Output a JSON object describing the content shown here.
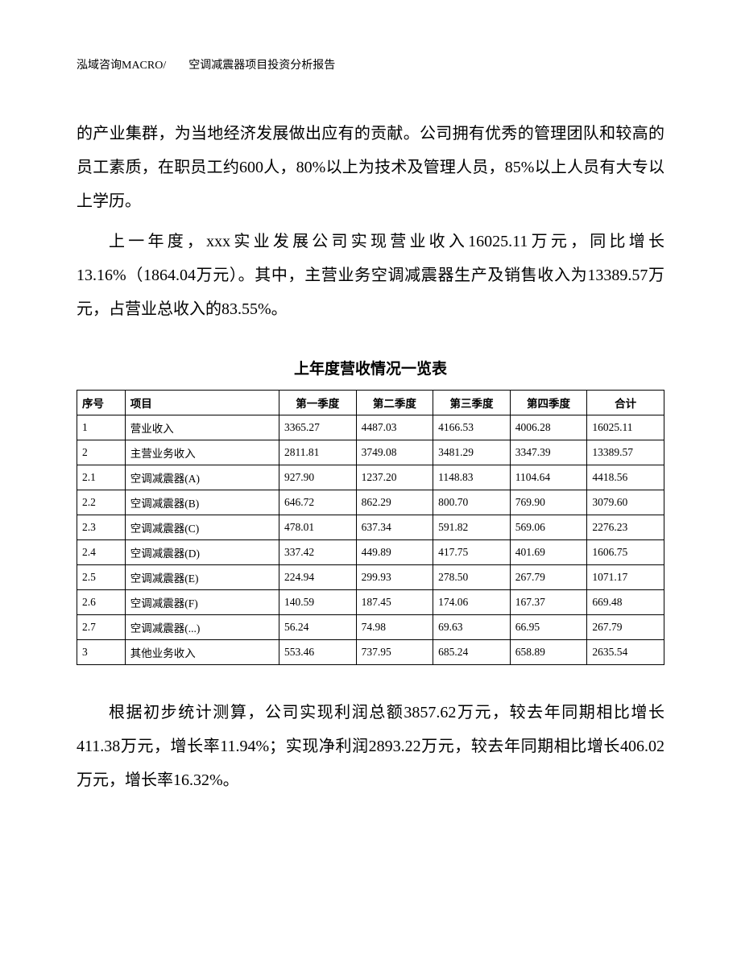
{
  "header": {
    "text": "泓域咨询MACRO/　　空调减震器项目投资分析报告"
  },
  "paragraph1": "的产业集群，为当地经济发展做出应有的贡献。公司拥有优秀的管理团队和较高的员工素质，在职员工约600人，80%以上为技术及管理人员，85%以上人员有大专以上学历。",
  "paragraph2": "上一年度，xxx实业发展公司实现营业收入16025.11万元，同比增长13.16%（1864.04万元）。其中，主营业务空调减震器生产及销售收入为13389.57万元，占营业总收入的83.55%。",
  "table": {
    "title": "上年度营收情况一览表",
    "headers": {
      "seq": "序号",
      "item": "项目",
      "q1": "第一季度",
      "q2": "第二季度",
      "q3": "第三季度",
      "q4": "第四季度",
      "total": "合计"
    },
    "rows": [
      {
        "seq": "1",
        "item": "营业收入",
        "q1": "3365.27",
        "q2": "4487.03",
        "q3": "4166.53",
        "q4": "4006.28",
        "total": "16025.11"
      },
      {
        "seq": "2",
        "item": "主营业务收入",
        "q1": "2811.81",
        "q2": "3749.08",
        "q3": "3481.29",
        "q4": "3347.39",
        "total": "13389.57"
      },
      {
        "seq": "2.1",
        "item": "空调减震器(A)",
        "q1": "927.90",
        "q2": "1237.20",
        "q3": "1148.83",
        "q4": "1104.64",
        "total": "4418.56"
      },
      {
        "seq": "2.2",
        "item": "空调减震器(B)",
        "q1": "646.72",
        "q2": "862.29",
        "q3": "800.70",
        "q4": "769.90",
        "total": "3079.60"
      },
      {
        "seq": "2.3",
        "item": "空调减震器(C)",
        "q1": "478.01",
        "q2": "637.34",
        "q3": "591.82",
        "q4": "569.06",
        "total": "2276.23"
      },
      {
        "seq": "2.4",
        "item": "空调减震器(D)",
        "q1": "337.42",
        "q2": "449.89",
        "q3": "417.75",
        "q4": "401.69",
        "total": "1606.75"
      },
      {
        "seq": "2.5",
        "item": "空调减震器(E)",
        "q1": "224.94",
        "q2": "299.93",
        "q3": "278.50",
        "q4": "267.79",
        "total": "1071.17"
      },
      {
        "seq": "2.6",
        "item": "空调减震器(F)",
        "q1": "140.59",
        "q2": "187.45",
        "q3": "174.06",
        "q4": "167.37",
        "total": "669.48"
      },
      {
        "seq": "2.7",
        "item": "空调减震器(...)",
        "q1": "56.24",
        "q2": "74.98",
        "q3": "69.63",
        "q4": "66.95",
        "total": "267.79"
      },
      {
        "seq": "3",
        "item": "其他业务收入",
        "q1": "553.46",
        "q2": "737.95",
        "q3": "685.24",
        "q4": "658.89",
        "total": "2635.54"
      }
    ]
  },
  "paragraph3": "根据初步统计测算，公司实现利润总额3857.62万元，较去年同期相比增长411.38万元，增长率11.94%；实现净利润2893.22万元，较去年同期相比增长406.02万元，增长率16.32%。"
}
